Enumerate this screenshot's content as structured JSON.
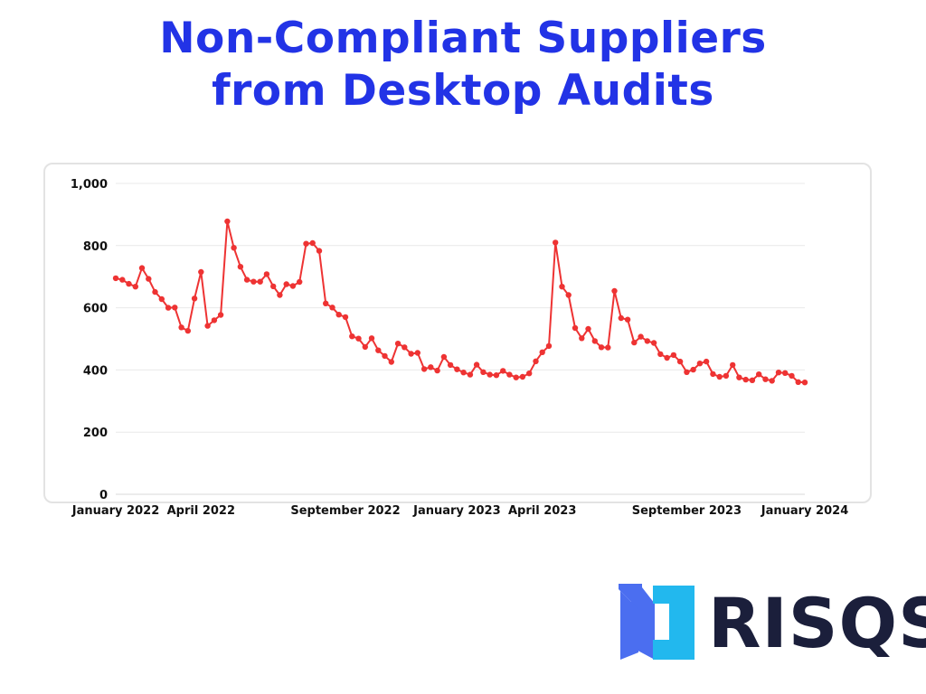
{
  "colors": {
    "title": "#2233e6",
    "line": "#ee3333",
    "grid": "#e9e9e9",
    "axis_text": "#111111",
    "logo_dark": "#1b1f3b",
    "logo_blue": "#4b6ef0",
    "logo_cyan": "#22b8ee"
  },
  "title": {
    "line1": "Non-Compliant Suppliers",
    "line2": "from Desktop Audits"
  },
  "logo": {
    "text": "RISQS",
    "icon": "risqs-bracket-logo-icon"
  },
  "chart_data": {
    "type": "line",
    "title": "Non-Compliant Suppliers from Desktop Audits",
    "xlabel": "",
    "ylabel": "",
    "ylim": [
      0,
      1000
    ],
    "yticks": [
      0,
      200,
      400,
      600,
      800,
      1000
    ],
    "ytick_labels": [
      "0",
      "200",
      "400",
      "600",
      "800",
      "1,000"
    ],
    "grid": true,
    "legend": "none",
    "x_range": [
      "2022-01-02",
      "2024-01-07"
    ],
    "x_tick_labels": [
      {
        "date": "2022-01-02",
        "label": "January 2022"
      },
      {
        "date": "2022-04-03",
        "label": "April 2022"
      },
      {
        "date": "2022-09-04",
        "label": "September 2022"
      },
      {
        "date": "2023-01-01",
        "label": "January 2023"
      },
      {
        "date": "2023-04-02",
        "label": "April 2023"
      },
      {
        "date": "2023-09-03",
        "label": "September 2023"
      },
      {
        "date": "2024-01-07",
        "label": "January 2024"
      }
    ],
    "series": [
      {
        "frequency": "weekly",
        "x": [
          "2022-01-02",
          "2022-01-09",
          "2022-01-16",
          "2022-01-23",
          "2022-01-30",
          "2022-02-06",
          "2022-02-13",
          "2022-02-20",
          "2022-02-27",
          "2022-03-06",
          "2022-03-13",
          "2022-03-20",
          "2022-03-27",
          "2022-04-03",
          "2022-04-10",
          "2022-04-17",
          "2022-04-24",
          "2022-05-01",
          "2022-05-08",
          "2022-05-15",
          "2022-05-22",
          "2022-05-29",
          "2022-06-05",
          "2022-06-12",
          "2022-06-19",
          "2022-06-26",
          "2022-07-03",
          "2022-07-10",
          "2022-07-17",
          "2022-07-24",
          "2022-07-31",
          "2022-08-07",
          "2022-08-14",
          "2022-08-21",
          "2022-08-28",
          "2022-09-04",
          "2022-09-11",
          "2022-09-18",
          "2022-09-25",
          "2022-10-02",
          "2022-10-09",
          "2022-10-16",
          "2022-10-23",
          "2022-10-30",
          "2022-11-06",
          "2022-11-13",
          "2022-11-20",
          "2022-11-27",
          "2022-12-04",
          "2022-12-11",
          "2022-12-18",
          "2022-12-25",
          "2023-01-01",
          "2023-01-08",
          "2023-01-15",
          "2023-01-22",
          "2023-01-29",
          "2023-02-05",
          "2023-02-12",
          "2023-02-19",
          "2023-02-26",
          "2023-03-05",
          "2023-03-12",
          "2023-03-19",
          "2023-03-26",
          "2023-04-02",
          "2023-04-09",
          "2023-04-16",
          "2023-04-23",
          "2023-04-30",
          "2023-05-07",
          "2023-05-14",
          "2023-05-21",
          "2023-05-28",
          "2023-06-04",
          "2023-06-11",
          "2023-06-18",
          "2023-06-25",
          "2023-07-02",
          "2023-07-09",
          "2023-07-16",
          "2023-07-23",
          "2023-07-30",
          "2023-08-06",
          "2023-08-13",
          "2023-08-20",
          "2023-08-27",
          "2023-09-03",
          "2023-09-10",
          "2023-09-17",
          "2023-09-24",
          "2023-10-01",
          "2023-10-08",
          "2023-10-15",
          "2023-10-22",
          "2023-10-29",
          "2023-11-05",
          "2023-11-12",
          "2023-11-19",
          "2023-11-26",
          "2023-12-03",
          "2023-12-10",
          "2023-12-17",
          "2023-12-24",
          "2023-12-31",
          "2024-01-07"
        ],
        "values": [
          695,
          690,
          677,
          668,
          728,
          693,
          651,
          628,
          600,
          601,
          537,
          526,
          630,
          715,
          542,
          560,
          577,
          878,
          793,
          732,
          690,
          684,
          684,
          708,
          669,
          641,
          676,
          670,
          683,
          806,
          808,
          783,
          614,
          601,
          578,
          570,
          508,
          501,
          474,
          502,
          463,
          445,
          426,
          485,
          473,
          452,
          455,
          403,
          409,
          398,
          442,
          416,
          402,
          392,
          385,
          417,
          393,
          385,
          383,
          397,
          385,
          376,
          378,
          389,
          428,
          457,
          477,
          810,
          668,
          641,
          535,
          502,
          532,
          493,
          473,
          472,
          654,
          567,
          562,
          488,
          507,
          493,
          487,
          451,
          439,
          448,
          427,
          393,
          401,
          421,
          427,
          387,
          378,
          381,
          416,
          376,
          369,
          367,
          386,
          370,
          365,
          392,
          390,
          381,
          361,
          360
        ]
      }
    ]
  }
}
